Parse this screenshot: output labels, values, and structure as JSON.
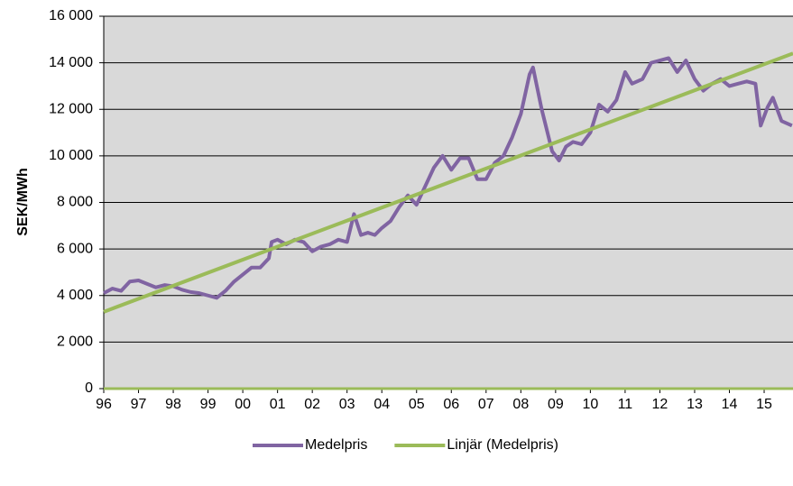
{
  "chart_data": {
    "type": "line",
    "y_label": "SEK/MWh",
    "xlim": [
      1996,
      2015.83
    ],
    "ylim": [
      0,
      16000
    ],
    "xticks": [
      {
        "value": 1996,
        "label": "96"
      },
      {
        "value": 1997,
        "label": "97"
      },
      {
        "value": 1998,
        "label": "98"
      },
      {
        "value": 1999,
        "label": "99"
      },
      {
        "value": 2000,
        "label": "00"
      },
      {
        "value": 2001,
        "label": "01"
      },
      {
        "value": 2002,
        "label": "02"
      },
      {
        "value": 2003,
        "label": "03"
      },
      {
        "value": 2004,
        "label": "04"
      },
      {
        "value": 2005,
        "label": "05"
      },
      {
        "value": 2006,
        "label": "06"
      },
      {
        "value": 2007,
        "label": "07"
      },
      {
        "value": 2008,
        "label": "08"
      },
      {
        "value": 2009,
        "label": "09"
      },
      {
        "value": 2010,
        "label": "10"
      },
      {
        "value": 2011,
        "label": "11"
      },
      {
        "value": 2012,
        "label": "12"
      },
      {
        "value": 2013,
        "label": "13"
      },
      {
        "value": 2014,
        "label": "14"
      },
      {
        "value": 2015,
        "label": "15"
      }
    ],
    "yticks": [
      0,
      {
        "value": 2000,
        "label": "2 000"
      },
      {
        "value": 4000,
        "label": "4 000"
      },
      {
        "value": 6000,
        "label": "6 000"
      },
      {
        "value": 8000,
        "label": "8 000"
      },
      {
        "value": 10000,
        "label": "10 000"
      },
      {
        "value": 12000,
        "label": "12 000"
      },
      {
        "value": 14000,
        "label": "14 000"
      },
      {
        "value": 16000,
        "label": "16 000"
      }
    ],
    "grid": true,
    "legend": "bottom",
    "series": [
      {
        "name": "Medelpris",
        "color": "#8064a2",
        "x": [
          1996.0,
          1996.25,
          1996.5,
          1996.75,
          1997.0,
          1997.25,
          1997.5,
          1997.75,
          1998.0,
          1998.25,
          1998.5,
          1998.75,
          1999.0,
          1999.25,
          1999.5,
          1999.75,
          2000.0,
          2000.25,
          2000.5,
          2000.75,
          2000.83,
          2001.0,
          2001.25,
          2001.5,
          2001.75,
          2002.0,
          2002.25,
          2002.5,
          2002.75,
          2003.0,
          2003.2,
          2003.4,
          2003.6,
          2003.8,
          2004.0,
          2004.25,
          2004.5,
          2004.75,
          2005.0,
          2005.25,
          2005.5,
          2005.75,
          2006.0,
          2006.25,
          2006.5,
          2006.75,
          2007.0,
          2007.25,
          2007.5,
          2007.75,
          2008.0,
          2008.25,
          2008.35,
          2008.6,
          2008.9,
          2009.1,
          2009.3,
          2009.5,
          2009.75,
          2010.0,
          2010.25,
          2010.5,
          2010.75,
          2011.0,
          2011.2,
          2011.5,
          2011.75,
          2012.0,
          2012.25,
          2012.5,
          2012.75,
          2013.0,
          2013.25,
          2013.5,
          2013.75,
          2014.0,
          2014.25,
          2014.5,
          2014.75,
          2014.9,
          2015.1,
          2015.25,
          2015.5,
          2015.8
        ],
        "values": [
          4100,
          4300,
          4200,
          4600,
          4650,
          4500,
          4350,
          4450,
          4400,
          4250,
          4150,
          4100,
          4000,
          3900,
          4200,
          4600,
          4900,
          5200,
          5200,
          5600,
          6300,
          6400,
          6200,
          6400,
          6300,
          5900,
          6100,
          6200,
          6400,
          6300,
          7500,
          6600,
          6700,
          6600,
          6900,
          7200,
          7800,
          8300,
          7900,
          8700,
          9500,
          10000,
          9400,
          9900,
          9900,
          9000,
          9000,
          9700,
          10000,
          10800,
          11800,
          13500,
          13800,
          12000,
          10200,
          9800,
          10400,
          10600,
          10500,
          11000,
          12200,
          11900,
          12400,
          13600,
          13100,
          13300,
          14000,
          14100,
          14200,
          13600,
          14100,
          13300,
          12800,
          13100,
          13300,
          13000,
          13100,
          13200,
          13100,
          11300,
          12100,
          12500,
          11500,
          11300
        ]
      },
      {
        "name": "Linjär (Medelpris)",
        "color": "#9bbb59",
        "x": [
          1996.0,
          2015.83
        ],
        "values": [
          3300,
          14400
        ]
      }
    ]
  }
}
